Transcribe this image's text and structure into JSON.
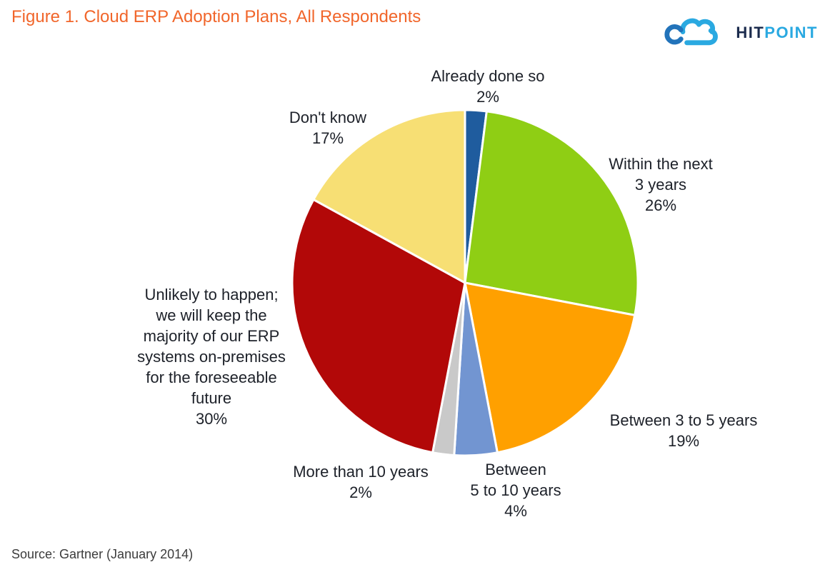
{
  "header": {
    "title": "Figure 1. Cloud ERP Adoption Plans, All Respondents",
    "logo": {
      "hit": "HIT",
      "point": "POINT"
    }
  },
  "chart_data": {
    "type": "pie",
    "title": "Figure 1. Cloud ERP Adoption Plans, All Respondents",
    "start_angle_deg": 0,
    "direction": "clockwise",
    "legend_position": "none",
    "labels_position": "outside",
    "slices": [
      {
        "label": "Already done so",
        "value": 2,
        "color": "#1f5c9e"
      },
      {
        "label": "Within the next 3 years",
        "value": 26,
        "color": "#8fce14"
      },
      {
        "label": "Between 3 to 5 years",
        "value": 19,
        "color": "#ffa000"
      },
      {
        "label": "Between 5 to 10 years",
        "value": 4,
        "color": "#7295d1"
      },
      {
        "label": "More than 10 years",
        "value": 2,
        "color": "#c9c9c9"
      },
      {
        "label": "Unlikely to happen; we will keep the majority of our ERP systems on-premises for the foreseeable future",
        "value": 30,
        "color": "#b20808"
      },
      {
        "label": "Don't know",
        "value": 17,
        "color": "#f7df74"
      }
    ]
  },
  "callouts": {
    "already_done": "Already done so\n2%",
    "dont_know": "Don't know\n17%",
    "within_3": "Within the next\n3 years\n26%",
    "between_3_5": "Between 3 to 5 years\n19%",
    "between_5_10": "Between\n5 to 10 years\n4%",
    "more_10": "More than 10 years\n2%",
    "unlikely": "Unlikely to happen;\nwe will keep the\nmajority of our ERP\nsystems on-premises\nfor the foreseeable\nfuture\n30%"
  },
  "footer": {
    "source": "Source: Gartner (January 2014)"
  }
}
